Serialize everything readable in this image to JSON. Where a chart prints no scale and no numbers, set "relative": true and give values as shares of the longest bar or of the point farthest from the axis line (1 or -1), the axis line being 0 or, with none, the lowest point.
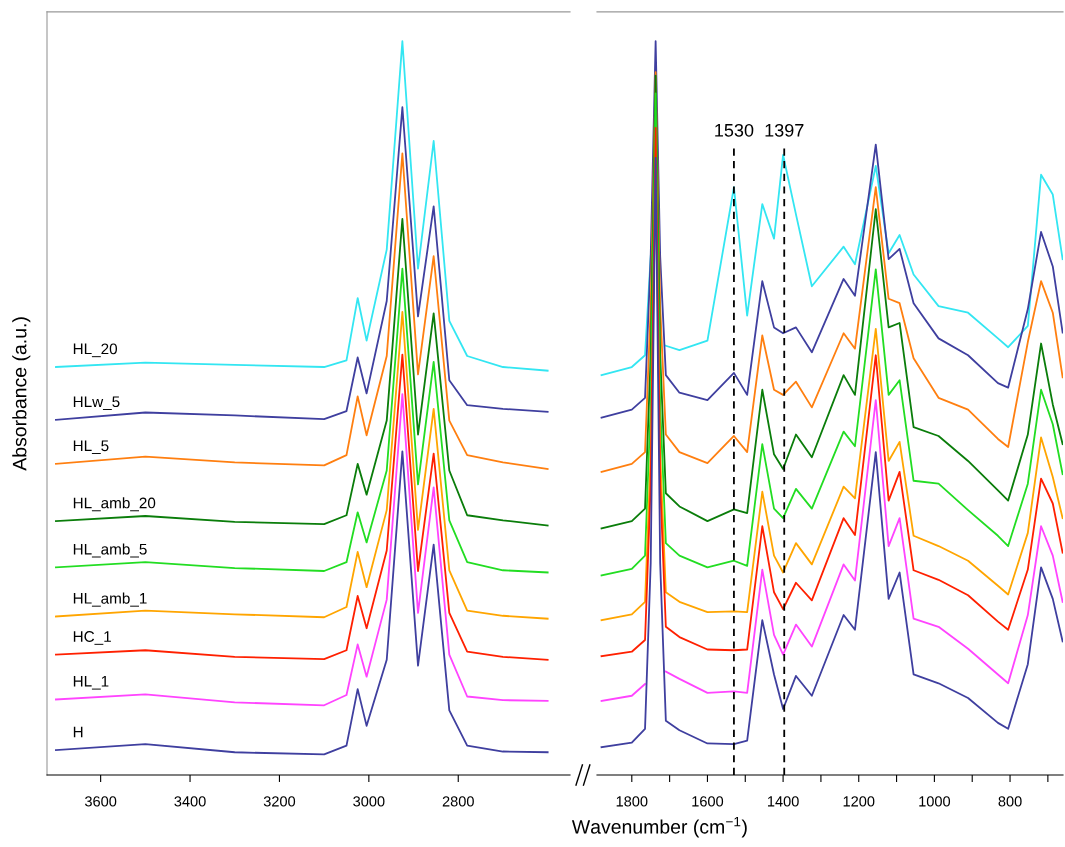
{
  "chart_data": [
    {
      "type": "line",
      "ylabel": "Absorbance (a.u.)",
      "relative": true,
      "xlim": [
        3720,
        2550
      ],
      "xticks": [
        3600,
        3400,
        3200,
        3000,
        2800
      ],
      "tick_labels": "x",
      "x": [
        3700,
        3500,
        3300,
        3100,
        3050,
        3025,
        3005,
        2960,
        2925,
        2890,
        2855,
        2820,
        2780,
        2700,
        2600
      ],
      "series": [
        {
          "name": "HL_20",
          "color": "#33e6f2",
          "values": [
            0.556,
            0.562,
            0.559,
            0.556,
            0.565,
            0.65,
            0.592,
            0.716,
            1.0,
            0.69,
            0.864,
            0.619,
            0.571,
            0.556,
            0.551
          ]
        },
        {
          "name": "HLw_5",
          "color": "#3f3f9f",
          "values": [
            0.484,
            0.494,
            0.49,
            0.485,
            0.496,
            0.569,
            0.52,
            0.646,
            0.91,
            0.625,
            0.775,
            0.538,
            0.504,
            0.499,
            0.495
          ]
        },
        {
          "name": "HL_5",
          "color": "#ff7f10",
          "values": [
            0.424,
            0.434,
            0.426,
            0.422,
            0.436,
            0.516,
            0.463,
            0.571,
            0.847,
            0.546,
            0.707,
            0.483,
            0.436,
            0.426,
            0.417
          ]
        },
        {
          "name": "HL_amb_20",
          "color": "#0a7d0a",
          "values": [
            0.346,
            0.353,
            0.345,
            0.342,
            0.354,
            0.424,
            0.382,
            0.483,
            0.758,
            0.464,
            0.629,
            0.415,
            0.354,
            0.347,
            0.34
          ]
        },
        {
          "name": "HL_amb_5",
          "color": "#22dd22",
          "values": [
            0.283,
            0.29,
            0.282,
            0.278,
            0.29,
            0.358,
            0.317,
            0.415,
            0.69,
            0.396,
            0.563,
            0.347,
            0.29,
            0.279,
            0.276
          ]
        },
        {
          "name": "HL_amb_1",
          "color": "#ffa500",
          "values": [
            0.216,
            0.224,
            0.219,
            0.215,
            0.229,
            0.304,
            0.256,
            0.361,
            0.631,
            0.334,
            0.499,
            0.279,
            0.224,
            0.217,
            0.213
          ]
        },
        {
          "name": "HC_1",
          "color": "#ff2000",
          "values": [
            0.164,
            0.17,
            0.161,
            0.158,
            0.17,
            0.244,
            0.2,
            0.306,
            0.573,
            0.278,
            0.438,
            0.221,
            0.168,
            0.161,
            0.157
          ]
        },
        {
          "name": "HL_1",
          "color": "#ff44ff",
          "values": [
            0.103,
            0.11,
            0.099,
            0.095,
            0.109,
            0.178,
            0.134,
            0.239,
            0.519,
            0.221,
            0.392,
            0.164,
            0.107,
            0.102,
            0.101
          ]
        },
        {
          "name": "H",
          "color": "#3f3f9f",
          "values": [
            0.034,
            0.042,
            0.031,
            0.028,
            0.04,
            0.117,
            0.067,
            0.157,
            0.441,
            0.149,
            0.314,
            0.088,
            0.04,
            0.032,
            0.031
          ]
        }
      ]
    },
    {
      "type": "line",
      "xlabel": "Wavenumber (cm$^{−1}$)",
      "relative": true,
      "xlim": [
        1892,
        660
      ],
      "tick_labels": "x",
      "xticks": [
        1800,
        {
          "value": 1700,
          "label": null
        },
        1600,
        {
          "value": 1500,
          "label": null
        },
        1400,
        {
          "value": 1300,
          "label": null
        },
        1200,
        {
          "value": 1100,
          "label": null
        },
        1000,
        {
          "value": 900,
          "label": null
        },
        800,
        {
          "value": 700,
          "label": null
        }
      ],
      "ref_lines": [
        {
          "axis": "x",
          "value": 1530,
          "label": "1530",
          "line_style": "dashed",
          "color": "#000000"
        },
        {
          "axis": "x",
          "value": 1397,
          "label": "1397",
          "line_style": "dashed",
          "color": "#000000"
        }
      ],
      "x": [
        1880,
        1800,
        1765,
        1750,
        1737,
        1725,
        1710,
        1674,
        1600,
        1530,
        1495,
        1455,
        1424,
        1400,
        1366,
        1324,
        1240,
        1210,
        1155,
        1121,
        1092,
        1055,
        989,
        911,
        832,
        805,
        753,
        718,
        687,
        661
      ],
      "series": [
        {
          "color": "#33e6f2",
          "values": [
            0.545,
            0.556,
            0.572,
            0.707,
            null,
            null,
            0.585,
            0.579,
            0.592,
            0.801,
            0.626,
            0.778,
            0.731,
            0.845,
            0.764,
            0.666,
            0.72,
            0.696,
            0.83,
            0.711,
            0.736,
            0.682,
            0.639,
            0.63,
            0.595,
            0.583,
            0.612,
            0.818,
            0.791,
            0.703
          ]
        },
        {
          "color": "#3f3f9f",
          "values": [
            0.487,
            0.498,
            0.514,
            0.707,
            1.0,
            0.707,
            0.545,
            0.521,
            0.511,
            0.548,
            0.518,
            0.673,
            0.61,
            0.602,
            0.61,
            0.576,
            0.676,
            0.653,
            0.859,
            0.703,
            0.717,
            0.643,
            0.595,
            0.572,
            0.534,
            0.528,
            0.635,
            0.74,
            0.693,
            0.603
          ]
        },
        {
          "color": "#ff7f10",
          "values": [
            0.413,
            0.424,
            0.44,
            0.639,
            0.958,
            0.639,
            0.464,
            0.44,
            0.425,
            0.462,
            0.44,
            0.599,
            0.525,
            0.518,
            0.536,
            0.501,
            0.602,
            0.581,
            0.801,
            0.649,
            0.643,
            0.568,
            0.514,
            0.498,
            0.458,
            0.447,
            0.59,
            0.673,
            0.63,
            0.542
          ]
        },
        {
          "color": "#0a7d0a",
          "values": [
            0.336,
            0.346,
            0.363,
            0.572,
            0.953,
            0.572,
            0.384,
            0.366,
            0.346,
            0.362,
            0.357,
            0.525,
            0.437,
            0.417,
            0.464,
            0.433,
            0.545,
            0.518,
            0.771,
            0.61,
            0.616,
            0.474,
            0.462,
            0.428,
            0.388,
            0.374,
            0.464,
            0.588,
            0.505,
            0.451
          ]
        },
        {
          "color": "#22dd22",
          "values": [
            0.272,
            0.281,
            0.299,
            0.505,
            0.929,
            0.505,
            0.316,
            0.299,
            0.283,
            0.292,
            0.285,
            0.451,
            0.363,
            0.35,
            0.39,
            0.363,
            0.468,
            0.448,
            0.689,
            0.518,
            0.538,
            0.401,
            0.397,
            0.361,
            0.326,
            0.312,
            0.397,
            0.525,
            0.478,
            0.41
          ]
        },
        {
          "color": "#ffa500",
          "values": [
            0.211,
            0.219,
            0.236,
            0.437,
            0.814,
            0.437,
            0.249,
            0.236,
            0.222,
            0.223,
            0.222,
            0.386,
            0.299,
            0.276,
            0.316,
            0.287,
            0.393,
            0.377,
            0.608,
            0.428,
            0.454,
            0.326,
            0.312,
            0.292,
            0.258,
            0.246,
            0.33,
            0.46,
            0.406,
            0.35
          ]
        },
        {
          "color": "#ff2000",
          "values": [
            0.162,
            0.168,
            0.184,
            0.397,
            0.882,
            0.397,
            0.202,
            0.188,
            0.171,
            0.17,
            0.171,
            0.339,
            0.249,
            0.226,
            0.262,
            0.238,
            0.35,
            0.327,
            0.572,
            0.374,
            0.413,
            0.279,
            0.266,
            0.245,
            0.209,
            0.198,
            0.28,
            0.404,
            0.37,
            0.303
          ]
        },
        {
          "color": "#ff44ff",
          "values": [
            0.101,
            0.108,
            0.124,
            null,
            null,
            null,
            0.141,
            0.131,
            0.112,
            0.114,
            0.112,
            0.28,
            0.191,
            0.164,
            0.205,
            0.175,
            0.287,
            0.265,
            0.511,
            0.312,
            0.35,
            0.213,
            0.202,
            0.172,
            0.137,
            0.125,
            0.218,
            0.339,
            0.299,
            0.236
          ]
        },
        {
          "color": "#3f3f9f",
          "values": [
            0.038,
            0.044,
            0.063,
            0.289,
            0.841,
            0.289,
            0.074,
            0.061,
            0.043,
            0.042,
            0.047,
            0.211,
            0.137,
            0.09,
            0.135,
            0.108,
            0.218,
            0.198,
            0.44,
            0.24,
            0.276,
            0.137,
            0.125,
            0.105,
            0.071,
            0.063,
            0.151,
            0.283,
            0.24,
            0.182
          ]
        }
      ]
    }
  ]
}
